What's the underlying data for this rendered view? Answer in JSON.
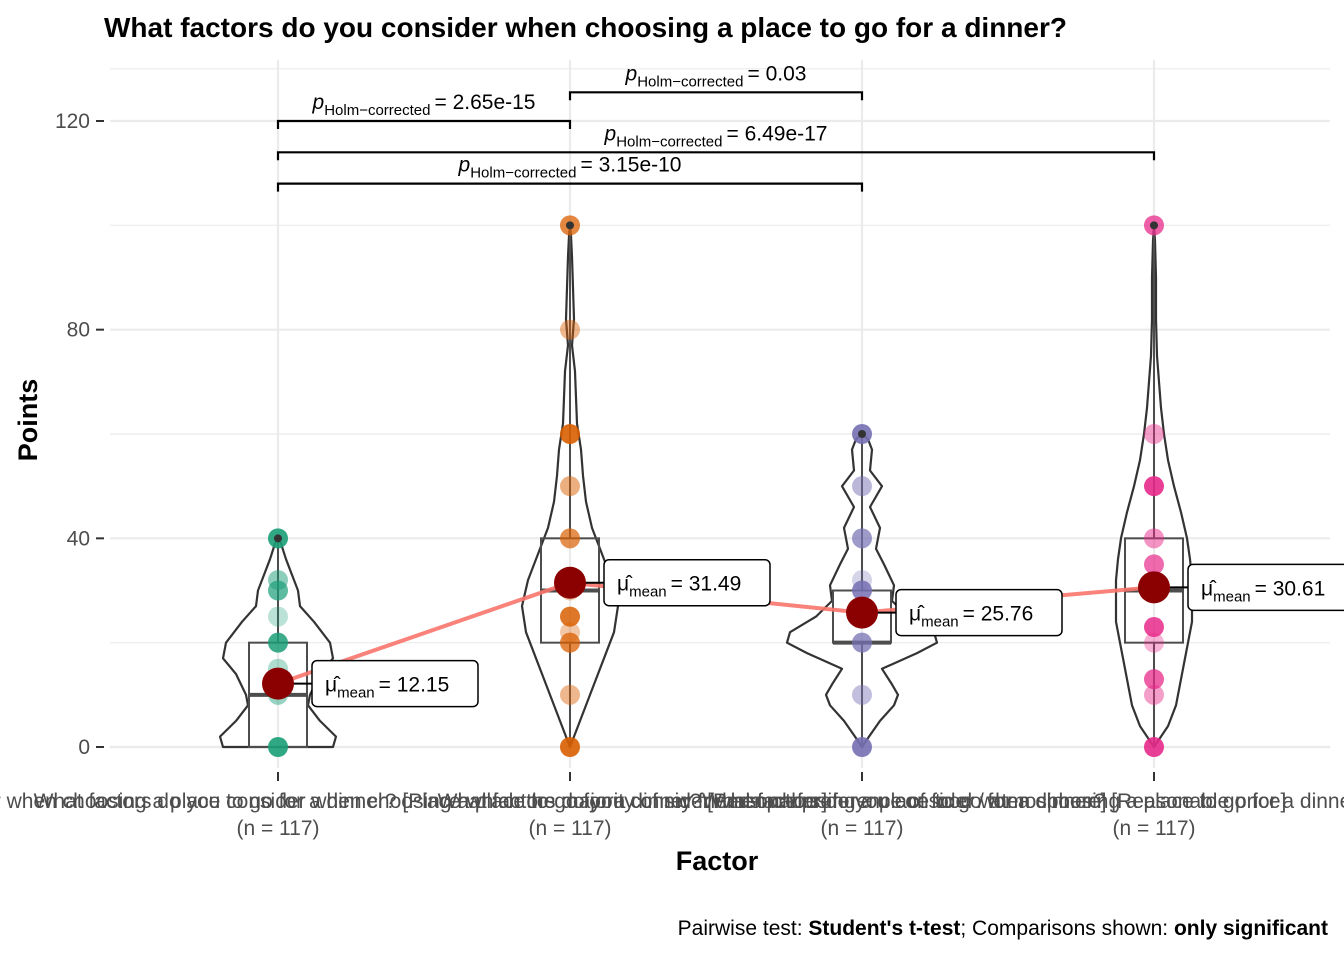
{
  "chart_data": {
    "type": "violin",
    "title": "What factors do you consider when choosing a place to go for a dinner?",
    "xlabel": "Factor",
    "ylabel": "Points",
    "ylim": [
      0,
      120
    ],
    "yticks": [
      0,
      40,
      80,
      120
    ],
    "grid": true,
    "categories": [
      {
        "label": "What factors do you consider when choosing a place to go for a dinner? [Place which the majority of my friends prefer]",
        "n_label": "(n = 117)",
        "color": "#1B9E77",
        "mean": 12.15,
        "mean_label": "= 12.15",
        "q1": 0,
        "median": 10,
        "q3": 20,
        "min": 0,
        "max": 40,
        "points": [
          0,
          10,
          12,
          15,
          20,
          25,
          30,
          32,
          40
        ]
      },
      {
        "label": "What factors do you consider when choosing a place to go for a dinner? [Personal preference of food / atmosphere]",
        "n_label": "(n = 117)",
        "color": "#D95F02",
        "mean": 31.49,
        "mean_label": "= 31.49",
        "q1": 20,
        "median": 30,
        "q3": 40,
        "min": 0,
        "max": 100,
        "points": [
          0,
          10,
          20,
          22,
          25,
          30,
          40,
          50,
          60,
          80,
          100
        ]
      },
      {
        "label": "What factors do you consider when choosing a place to go for a dinner? [Reasonable price]",
        "n_label": "(n = 117)",
        "color": "#7570B3",
        "mean": 25.76,
        "mean_label": "= 25.76",
        "q1": 20,
        "median": 20,
        "q3": 30,
        "min": 0,
        "max": 60,
        "points": [
          0,
          10,
          20,
          25,
          30,
          32,
          40,
          50,
          60
        ]
      },
      {
        "label": "What factors do you consider when choosing a place to go for a dinner? [Distance to the location]",
        "n_label": "(n = 117)",
        "color": "#E7298A",
        "mean": 30.61,
        "mean_label": "= 30.61",
        "q1": 20,
        "median": 30,
        "q3": 40,
        "min": 0,
        "max": 100,
        "points": [
          0,
          10,
          13,
          20,
          23,
          30,
          35,
          40,
          50,
          60,
          100
        ]
      }
    ],
    "comparisons": [
      {
        "from": 0,
        "to": 1,
        "y": 120,
        "label": "= 2.65e-15"
      },
      {
        "from": 1,
        "to": 2,
        "y": 125.5,
        "label": "= 0.03"
      },
      {
        "from": 0,
        "to": 3,
        "y": 114,
        "label": "= 6.49e-17"
      },
      {
        "from": 0,
        "to": 2,
        "y": 108,
        "label": "= 3.15e-10"
      }
    ],
    "p_symbol": "p",
    "p_subscript": "Holm−corrected",
    "mu_symbol": "μ̂",
    "mu_subscript": "mean",
    "mean_line_color": "#F8766D",
    "mean_point_color": "#8B0000",
    "caption": {
      "prefix": "Pairwise test: ",
      "test": "Student's t-test",
      "middle": "; Comparisons shown: ",
      "shown": "only significant"
    }
  }
}
